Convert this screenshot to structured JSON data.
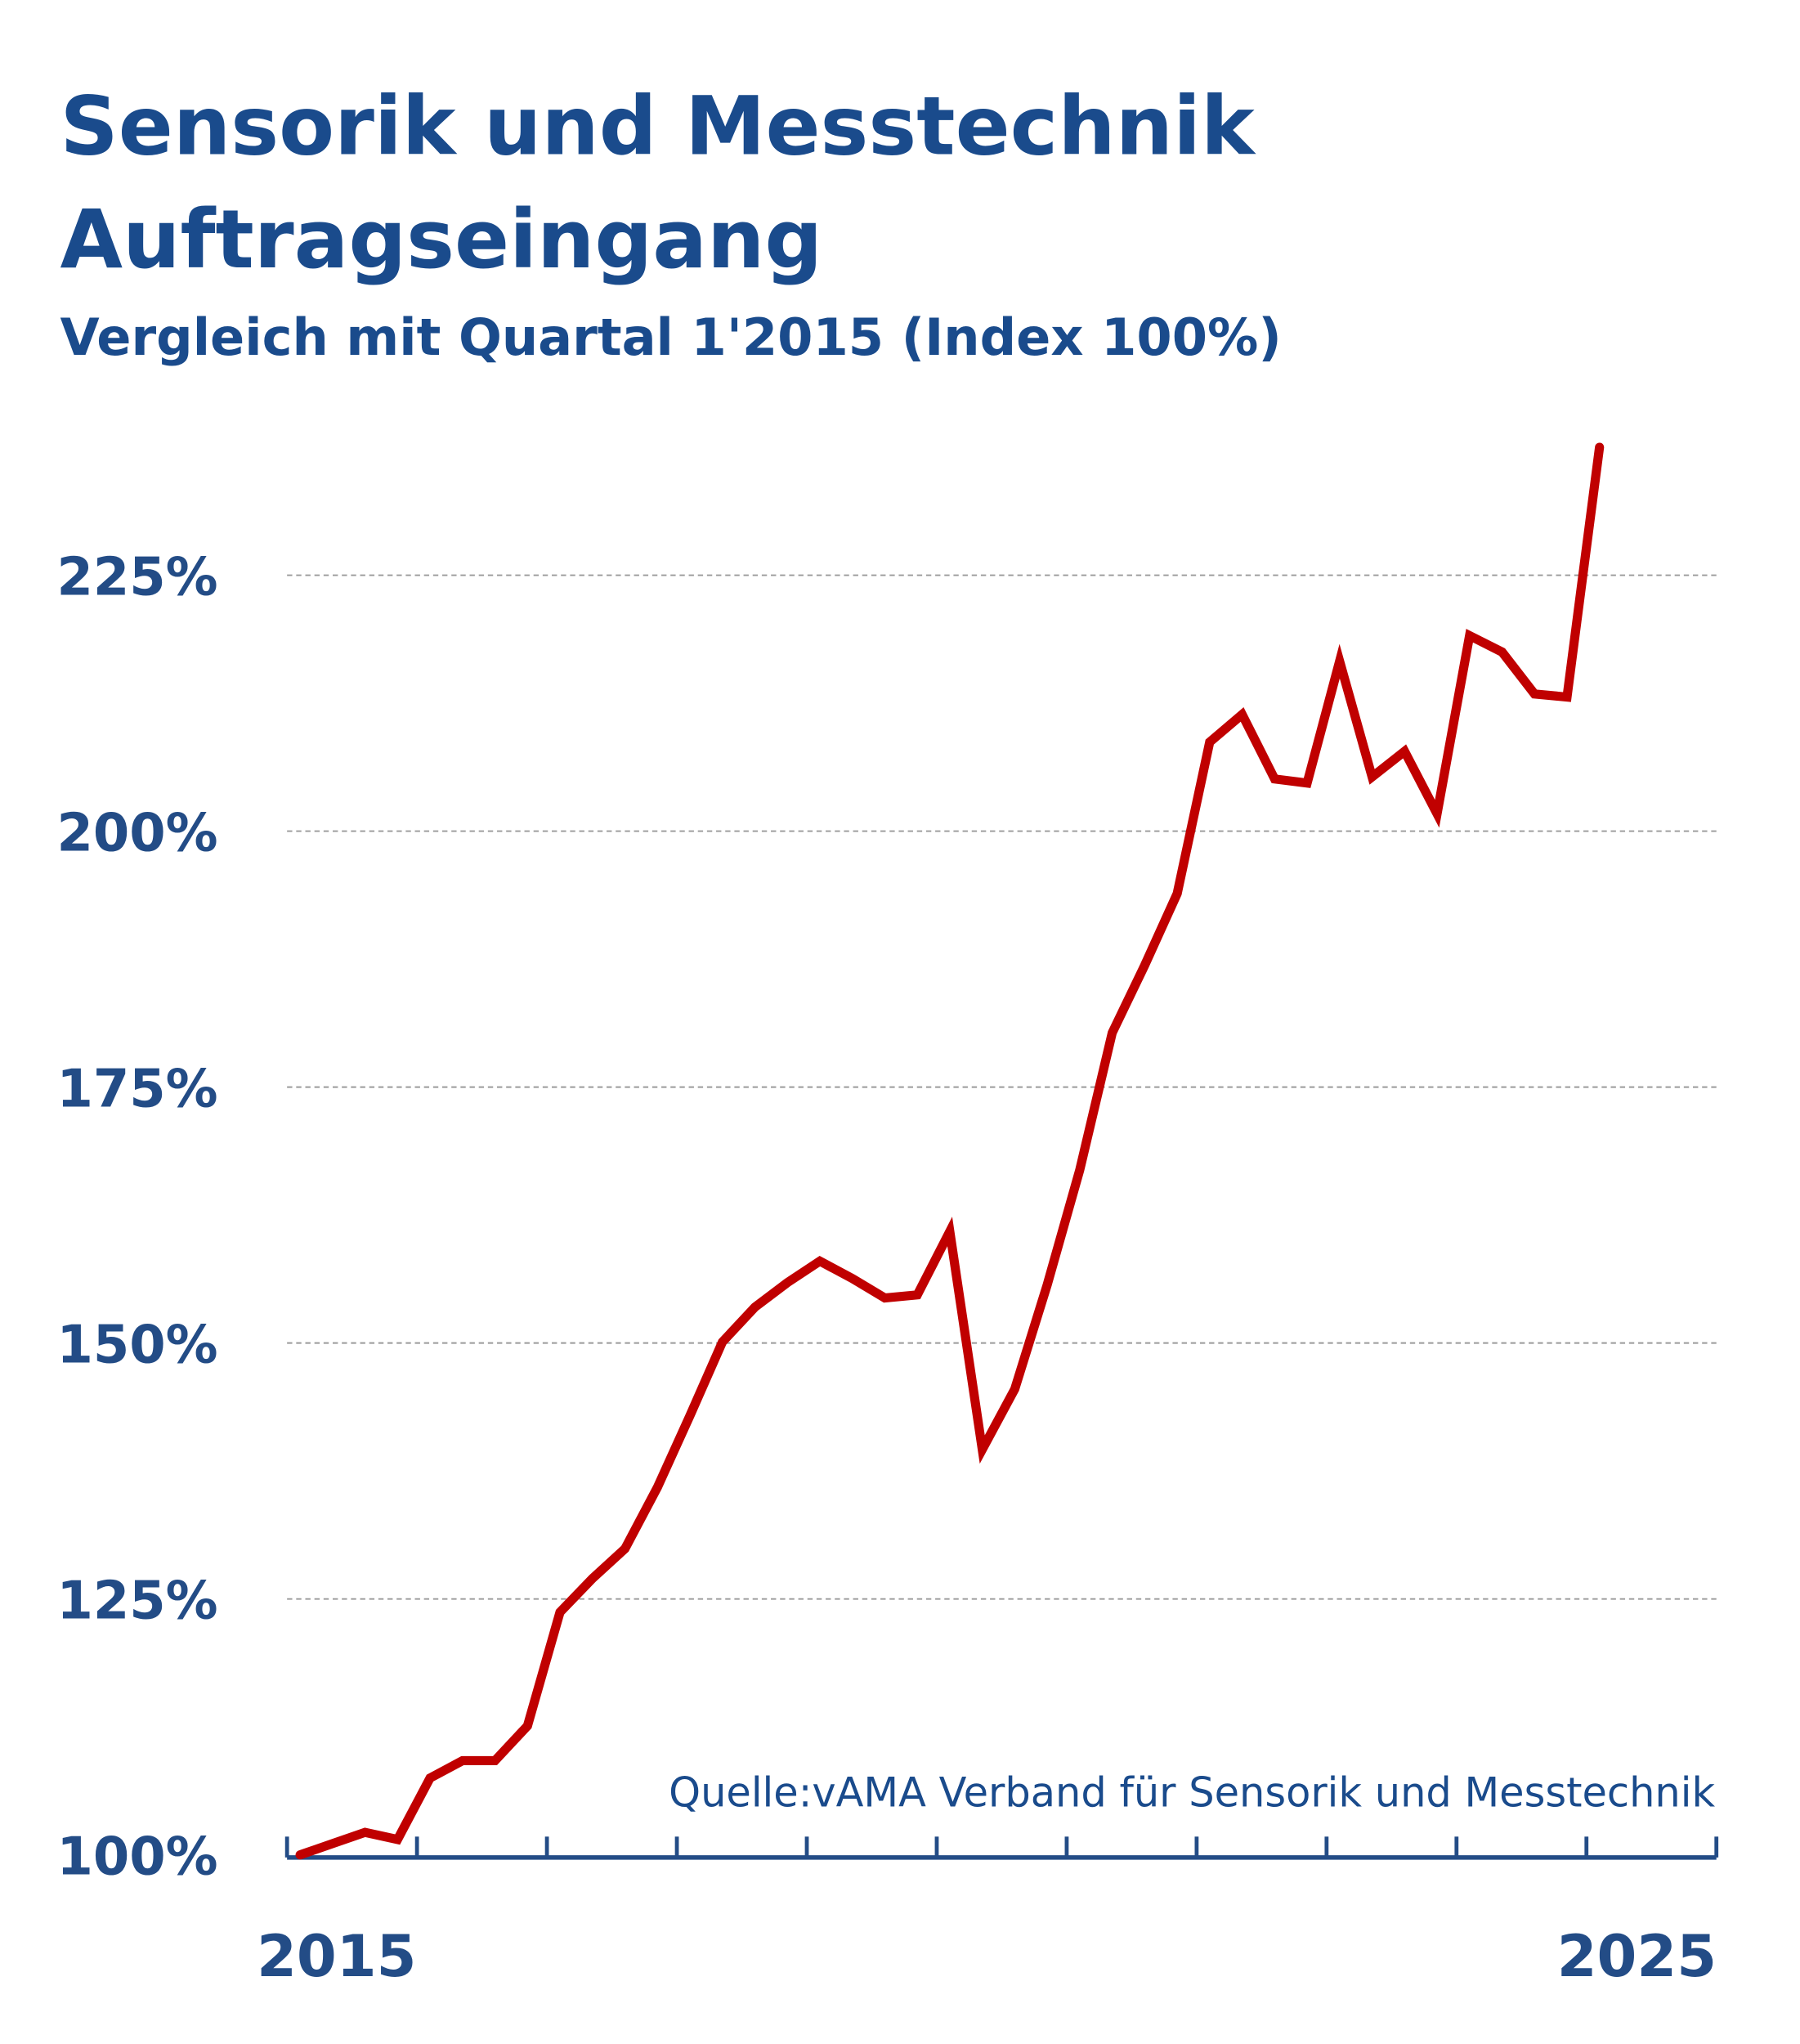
{
  "chart_data": {
    "type": "line",
    "title": "Sensorik und Messtechnik",
    "title_line2": "Auftragseingang",
    "subtitle": "Vergleich mit Quartal 1'2015 (Index 100%)",
    "source": "Quelle:vAMA Verband für Sensorik und Messtechnik",
    "xlabel": "",
    "ylabel": "",
    "x_tick_labels": [
      "2015",
      "2025"
    ],
    "x_range_years": [
      2015,
      2026
    ],
    "y_ticks": [
      100,
      125,
      150,
      175,
      200,
      225
    ],
    "y_tick_labels": [
      "100%",
      "125%",
      "150%",
      "175%",
      "200%",
      "225%"
    ],
    "ylim": [
      100,
      240
    ],
    "grid": "horizontal dashed",
    "legend": "none",
    "line_color": "#c00000",
    "axis_color": "#234c86",
    "x": [
      "Q1 2015",
      "Q2 2015",
      "Q3 2015",
      "Q4 2015",
      "Q1 2016",
      "Q2 2016",
      "Q3 2016",
      "Q4 2016",
      "Q1 2017",
      "Q2 2017",
      "Q3 2017",
      "Q4 2017",
      "Q1 2018",
      "Q2 2018",
      "Q3 2018",
      "Q4 2018",
      "Q1 2019",
      "Q2 2019",
      "Q3 2019",
      "Q4 2019",
      "Q1 2020",
      "Q2 2020",
      "Q3 2020",
      "Q4 2020",
      "Q1 2021",
      "Q2 2021",
      "Q3 2021",
      "Q4 2021",
      "Q1 2022",
      "Q2 2022",
      "Q3 2022",
      "Q4 2022",
      "Q1 2023",
      "Q2 2023",
      "Q3 2023",
      "Q4 2023",
      "Q1 2024",
      "Q2 2024",
      "Q3 2024",
      "Q4 2024",
      "Q1 2025"
    ],
    "values": [
      100,
      101.1,
      102.2,
      101.5,
      107.5,
      109.2,
      109.2,
      112.6,
      123.7,
      127,
      129.9,
      135.9,
      142.9,
      150.1,
      153.5,
      155.9,
      158,
      156.3,
      154.4,
      154.7,
      160.9,
      139.6,
      145.5,
      155.7,
      166.9,
      180.3,
      186.9,
      193.9,
      208.7,
      211.4,
      205.1,
      204.7,
      216.6,
      205.3,
      207.8,
      201.7,
      219.1,
      217.5,
      213.4,
      213.1,
      237.5
    ]
  }
}
